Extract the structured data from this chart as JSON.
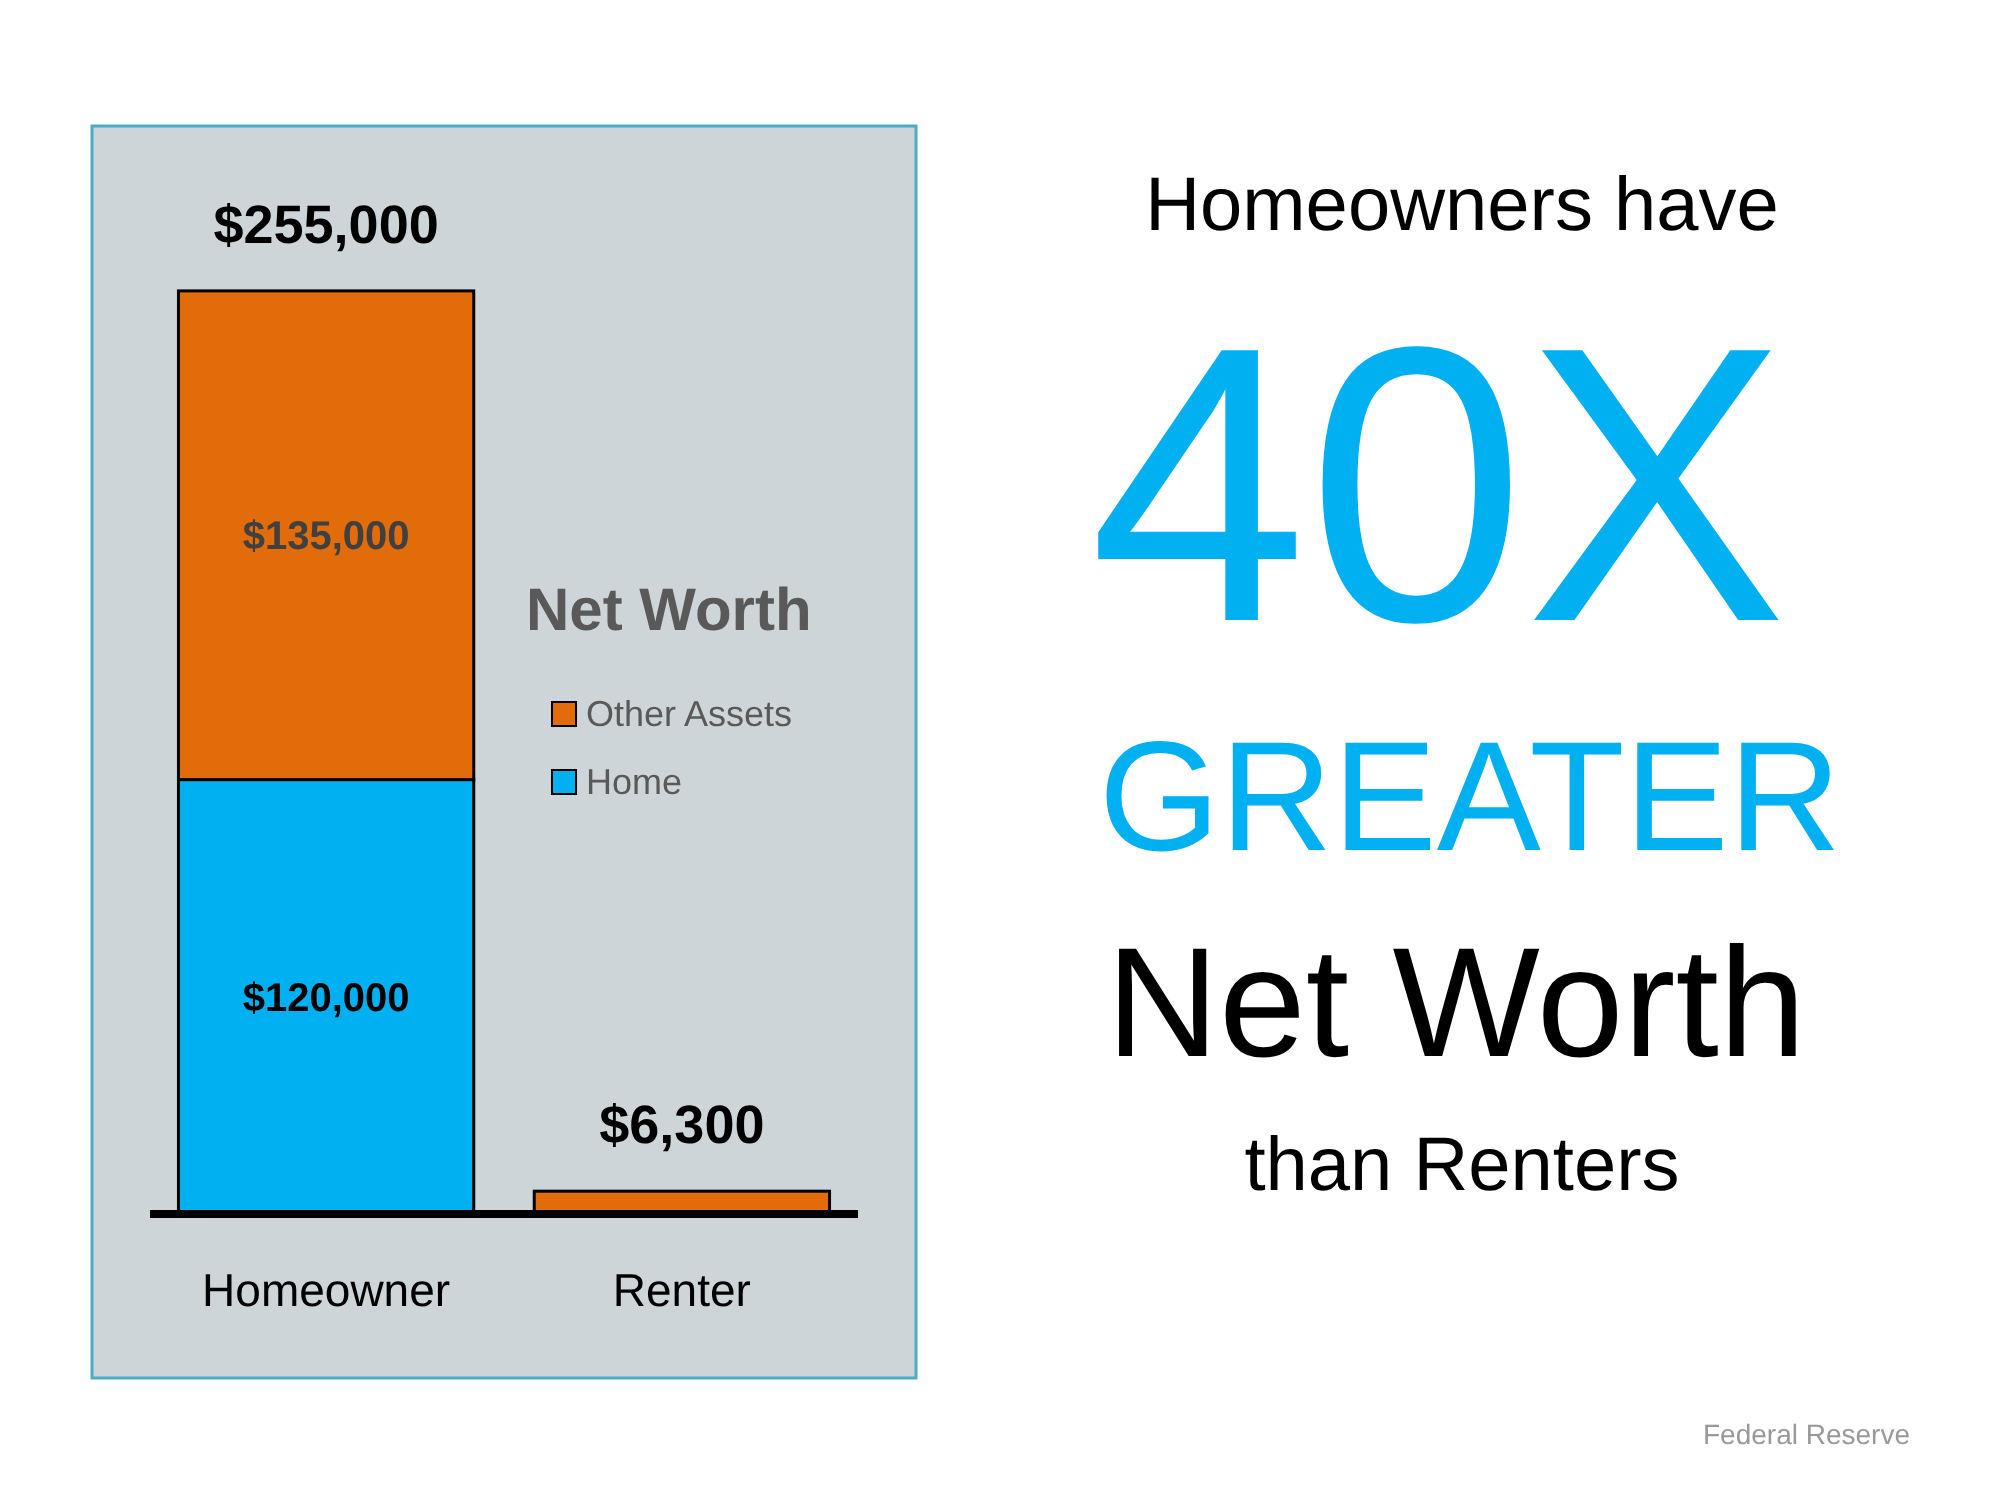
{
  "chart_data": {
    "type": "bar",
    "legend_title": "Net Worth",
    "categories": [
      "Homeowner",
      "Renter"
    ],
    "series": [
      {
        "name": "Home",
        "color": "#00b0f0",
        "values": [
          120000,
          null
        ],
        "value_labels": [
          "$120,000",
          null
        ]
      },
      {
        "name": "Other Assets",
        "color": "#e36c0a",
        "values": [
          135000,
          6300
        ],
        "value_labels": [
          "$135,000",
          null
        ]
      }
    ],
    "stacked": true,
    "totals": [
      "$255,000",
      "$6,300"
    ],
    "ylim": [
      0,
      300000
    ],
    "tick_labels": "x",
    "legend": "right",
    "annotations": [
      "Homeowners have",
      "40X",
      "GREATER",
      "Net Worth",
      "than Renters",
      "Federal Reserve"
    ]
  }
}
